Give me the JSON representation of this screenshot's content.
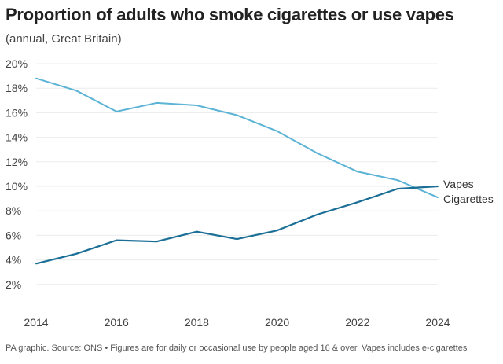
{
  "chart_data": {
    "type": "line",
    "title": "Proportion of adults who smoke cigarettes or use vapes",
    "subtitle": "(annual, Great Britain)",
    "source": "PA graphic. Source: ONS • Figures are for daily or occasional use by people aged 16 & over. Vapes includes e-cigarettes",
    "x": [
      2014,
      2015,
      2016,
      2017,
      2018,
      2019,
      2020,
      2021,
      2022,
      2023,
      2024
    ],
    "x_ticks": [
      "2014",
      "2016",
      "2018",
      "2020",
      "2022",
      "2024"
    ],
    "y_ticks": [
      "2%",
      "4%",
      "6%",
      "8%",
      "10%",
      "12%",
      "14%",
      "16%",
      "18%",
      "20%"
    ],
    "ylim": [
      0,
      20
    ],
    "grid": true,
    "series": [
      {
        "name": "Cigarettes",
        "color": "#5bb3d5",
        "values": [
          18.8,
          17.8,
          16.1,
          16.8,
          16.6,
          15.8,
          14.5,
          12.7,
          11.2,
          10.5,
          9.1
        ]
      },
      {
        "name": "Vapes",
        "color": "#1b6f97",
        "values": [
          3.7,
          4.5,
          5.6,
          5.5,
          6.3,
          5.7,
          6.4,
          7.7,
          8.7,
          9.8,
          10.0
        ]
      }
    ]
  }
}
